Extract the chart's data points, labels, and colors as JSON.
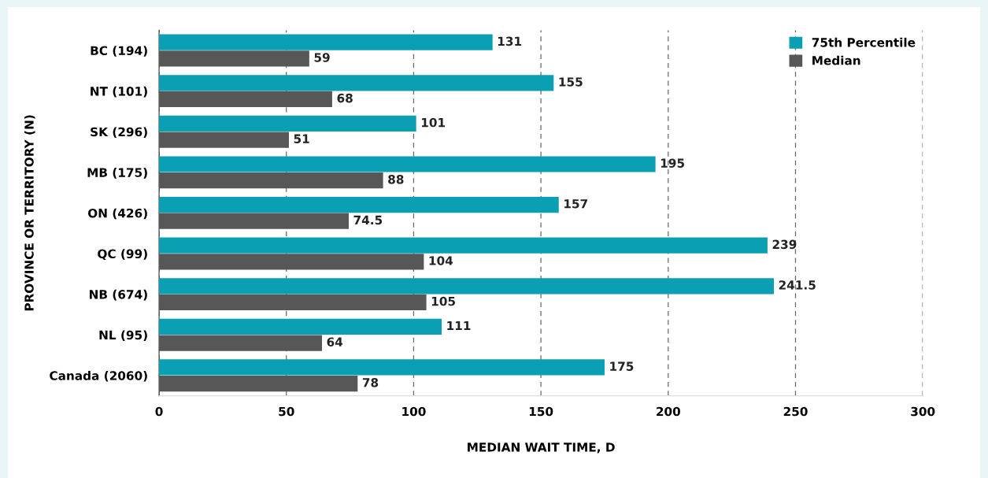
{
  "chart_data": {
    "type": "bar",
    "orientation": "horizontal",
    "xlabel": "MEDIAN WAIT TIME, D",
    "ylabel": "PROVINCE OR TERRITORY (N)",
    "categories": [
      "BC (194)",
      "NT (101)",
      "SK (296)",
      "MB (175)",
      "ON (426)",
      "QC (99)",
      "NB (674)",
      "NL (95)",
      "Canada (2060)"
    ],
    "series": [
      {
        "name": "75th Percentile",
        "color": "#0b9fb4",
        "values": [
          131,
          155,
          101,
          195,
          157,
          239,
          241.5,
          111,
          175
        ]
      },
      {
        "name": "Median",
        "color": "#575757",
        "values": [
          59,
          68,
          51,
          88,
          74.5,
          104,
          105,
          64,
          78
        ]
      }
    ],
    "xlim": [
      0,
      300
    ],
    "xticks": [
      0,
      50,
      100,
      150,
      200,
      250,
      300
    ],
    "grid": "x",
    "legend": "top right",
    "data_labels": true
  }
}
